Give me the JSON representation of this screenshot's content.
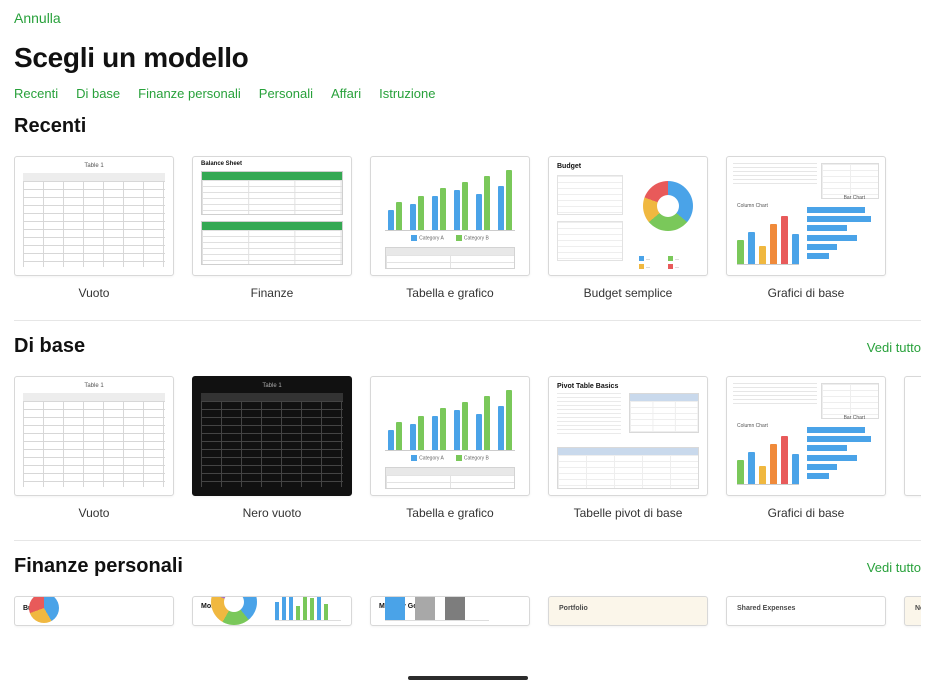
{
  "header": {
    "cancel": "Annulla",
    "title": "Scegli un modello"
  },
  "tabs": [
    "Recenti",
    "Di base",
    "Finanze personali",
    "Personali",
    "Affari",
    "Istruzione"
  ],
  "see_all": "Vedi tutto",
  "colors": {
    "accent": "#28a13b",
    "blue": "#4aa3e8",
    "green": "#7ac85a",
    "yellow": "#f0b840",
    "red": "#e85a5a",
    "orange": "#f08a3a",
    "purple": "#a66ad0",
    "gray": "#a8a8a8"
  },
  "sections": {
    "recenti": {
      "title": "Recenti",
      "items": [
        {
          "id": "vuoto",
          "label": "Vuoto",
          "type": "blank",
          "sheet_label": "Table 1"
        },
        {
          "id": "finanze",
          "label": "Finanze",
          "type": "balance",
          "sheet_label": "Balance Sheet"
        },
        {
          "id": "tabella-grafico",
          "label": "Tabella e grafico",
          "type": "barchart",
          "chart": {
            "pairs": [
              [
                20,
                28
              ],
              [
                26,
                34
              ],
              [
                34,
                42
              ],
              [
                40,
                48
              ],
              [
                36,
                54
              ],
              [
                44,
                60
              ]
            ],
            "color_a": "#4aa3e8",
            "color_b": "#7ac85a",
            "legend": [
              "Category A",
              "Category B"
            ]
          }
        },
        {
          "id": "budget-semplice",
          "label": "Budget semplice",
          "type": "budget",
          "budget_label": "Budget",
          "donut_colors": [
            "#4aa3e8",
            "#7ac85a",
            "#f0b840",
            "#e85a5a"
          ]
        },
        {
          "id": "grafici-base",
          "label": "Grafici di base",
          "type": "basiccharts",
          "bars": [
            {
              "h": 24,
              "c": "#7ac85a"
            },
            {
              "h": 32,
              "c": "#4aa3e8"
            },
            {
              "h": 18,
              "c": "#f0b840"
            },
            {
              "h": 40,
              "c": "#f08a3a"
            },
            {
              "h": 48,
              "c": "#e85a5a"
            },
            {
              "h": 30,
              "c": "#4aa3e8"
            }
          ],
          "hbars": [
            58,
            64,
            40,
            50,
            30,
            22
          ],
          "bars_title": "Column Chart",
          "hbars_title": "Bar Chart"
        }
      ]
    },
    "dibase": {
      "title": "Di base",
      "items": [
        {
          "id": "vuoto2",
          "label": "Vuoto",
          "type": "blank",
          "sheet_label": "Table 1"
        },
        {
          "id": "nero",
          "label": "Nero vuoto",
          "type": "blank-dark",
          "sheet_label": "Table 1"
        },
        {
          "id": "tabella-grafico2",
          "label": "Tabella e grafico",
          "type": "barchart",
          "chart": {
            "pairs": [
              [
                20,
                28
              ],
              [
                26,
                34
              ],
              [
                34,
                42
              ],
              [
                40,
                48
              ],
              [
                36,
                54
              ],
              [
                44,
                60
              ]
            ],
            "color_a": "#4aa3e8",
            "color_b": "#7ac85a",
            "legend": [
              "Category A",
              "Category B"
            ]
          }
        },
        {
          "id": "pivot",
          "label": "Tabelle pivot di base",
          "type": "pivot",
          "pivot_label": "Pivot Table Basics"
        },
        {
          "id": "grafici-base2",
          "label": "Grafici di base",
          "type": "basiccharts",
          "bars": [
            {
              "h": 24,
              "c": "#7ac85a"
            },
            {
              "h": 32,
              "c": "#4aa3e8"
            },
            {
              "h": 18,
              "c": "#f0b840"
            },
            {
              "h": 40,
              "c": "#f08a3a"
            },
            {
              "h": 48,
              "c": "#e85a5a"
            },
            {
              "h": 30,
              "c": "#4aa3e8"
            }
          ],
          "hbars": [
            58,
            64,
            40,
            50,
            30,
            22
          ],
          "bars_title": "Column Chart",
          "hbars_title": "Bar Chart"
        }
      ]
    },
    "finanze": {
      "title": "Finanze personali",
      "items": [
        {
          "id": "budget2",
          "label": "",
          "type": "budget-stub",
          "budget_label": "Budget"
        },
        {
          "id": "monthly-budget",
          "label": "",
          "type": "monthly-budget",
          "title": "Monthly Budget",
          "bars": [
            {
              "h": 18,
              "c": "#4aa3e8"
            },
            {
              "h": 26,
              "c": "#4aa3e8"
            },
            {
              "h": 34,
              "c": "#4aa3e8"
            },
            {
              "h": 14,
              "c": "#7ac85a"
            },
            {
              "h": 30,
              "c": "#7ac85a"
            },
            {
              "h": 22,
              "c": "#7ac85a"
            },
            {
              "h": 38,
              "c": "#4aa3e8"
            },
            {
              "h": 16,
              "c": "#7ac85a"
            }
          ]
        },
        {
          "id": "monthly-goal",
          "label": "",
          "type": "monthly-goal",
          "title": "Monthly Goal",
          "bars": [
            {
              "h": 40,
              "c": "#4aa3e8"
            },
            {
              "h": 30,
              "c": "#a8a8a8"
            },
            {
              "h": 46,
              "c": "#7d7d7d"
            }
          ]
        },
        {
          "id": "portfolio",
          "label": "",
          "type": "plain-stub",
          "title": "Portfolio",
          "cream": true
        },
        {
          "id": "shared-exp",
          "label": "",
          "type": "plain-stub",
          "title": "Shared Expenses",
          "cream": false
        },
        {
          "id": "networth",
          "label": "",
          "type": "plain-stub",
          "title": "Net Worth: Overview",
          "cream": true
        }
      ]
    }
  }
}
